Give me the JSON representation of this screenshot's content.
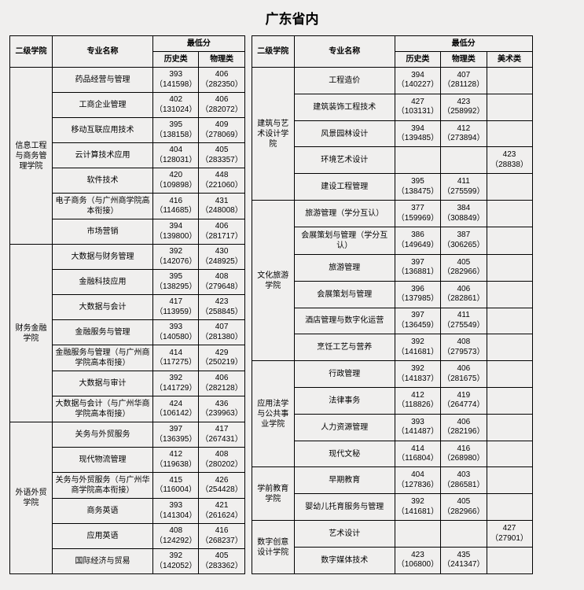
{
  "title": "广东省内",
  "hdr": {
    "col": "二级学院",
    "maj": "专业名称",
    "score": "最低分",
    "h": "历史类",
    "p": "物理类",
    "a": "美术类"
  },
  "left": [
    {
      "col": "信息工程与商务管理学院",
      "span": 7,
      "rows": [
        {
          "m": "药品经营与管理",
          "h1": "393",
          "h2": "（141598）",
          "p1": "406",
          "p2": "（282350）"
        },
        {
          "m": "工商企业管理",
          "h1": "402",
          "h2": "（131024）",
          "p1": "406",
          "p2": "（282072）"
        },
        {
          "m": "移动互联应用技术",
          "h1": "395",
          "h2": "（138158）",
          "p1": "409",
          "p2": "（278069）"
        },
        {
          "m": "云计算技术应用",
          "h1": "404",
          "h2": "（128031）",
          "p1": "405",
          "p2": "（283357）"
        },
        {
          "m": "软件技术",
          "h1": "420",
          "h2": "（109898）",
          "p1": "448",
          "p2": "（221060）"
        },
        {
          "m": "电子商务（与广州商学院高本衔接）",
          "h1": "416",
          "h2": "（114685）",
          "p1": "431",
          "p2": "（248008）"
        },
        {
          "m": "市场营销",
          "h1": "394",
          "h2": "（139800）",
          "p1": "406",
          "p2": "（281717）"
        }
      ]
    },
    {
      "col": "财务金融学院",
      "span": 7,
      "rows": [
        {
          "m": "大数据与财务管理",
          "h1": "392",
          "h2": "（142076）",
          "p1": "430",
          "p2": "（248925）"
        },
        {
          "m": "金融科技应用",
          "h1": "395",
          "h2": "（138295）",
          "p1": "408",
          "p2": "（279648）"
        },
        {
          "m": "大数据与会计",
          "h1": "417",
          "h2": "（113959）",
          "p1": "423",
          "p2": "（258845）"
        },
        {
          "m": "金融服务与管理",
          "h1": "393",
          "h2": "（140580）",
          "p1": "407",
          "p2": "（281380）"
        },
        {
          "m": "金融服务与管理（与广州商学院高本衔接）",
          "h1": "414",
          "h2": "（117275）",
          "p1": "429",
          "p2": "（250219）"
        },
        {
          "m": "大数据与审计",
          "h1": "392",
          "h2": "（141729）",
          "p1": "406",
          "p2": "（282128）"
        },
        {
          "m": "大数据与会计（与广州华商学院高本衔接）",
          "h1": "424",
          "h2": "（106142）",
          "p1": "436",
          "p2": "（239963）"
        }
      ]
    },
    {
      "col": "外语外贸学院",
      "span": 6,
      "rows": [
        {
          "m": "关务与外贸服务",
          "h1": "397",
          "h2": "（136395）",
          "p1": "417",
          "p2": "（267431）"
        },
        {
          "m": "现代物流管理",
          "h1": "412",
          "h2": "（119638）",
          "p1": "408",
          "p2": "（280202）"
        },
        {
          "m": "关务与外贸服务（与广州华商学院高本衔接）",
          "h1": "415",
          "h2": "（116004）",
          "p1": "426",
          "p2": "（254428）"
        },
        {
          "m": "商务英语",
          "h1": "393",
          "h2": "（141304）",
          "p1": "421",
          "p2": "（261624）"
        },
        {
          "m": "应用英语",
          "h1": "408",
          "h2": "（124292）",
          "p1": "416",
          "p2": "（268237）"
        },
        {
          "m": "国际经济与贸易",
          "h1": "392",
          "h2": "（142052）",
          "p1": "405",
          "p2": "（283362）"
        }
      ]
    }
  ],
  "right": [
    {
      "col": "建筑与艺术设计学院",
      "span": 5,
      "rows": [
        {
          "m": "工程造价",
          "h1": "394",
          "h2": "（140227）",
          "p1": "407",
          "p2": "（281128）",
          "a1": "",
          "a2": ""
        },
        {
          "m": "建筑装饰工程技术",
          "h1": "427",
          "h2": "（103131）",
          "p1": "423",
          "p2": "（258992）",
          "a1": "",
          "a2": ""
        },
        {
          "m": "风景园林设计",
          "h1": "394",
          "h2": "（139485）",
          "p1": "412",
          "p2": "（273894）",
          "a1": "",
          "a2": ""
        },
        {
          "m": "环境艺术设计",
          "h1": "",
          "h2": "",
          "p1": "",
          "p2": "",
          "a1": "423",
          "a2": "（28838）"
        },
        {
          "m": "建设工程管理",
          "h1": "395",
          "h2": "（138475）",
          "p1": "411",
          "p2": "（275599）",
          "a1": "",
          "a2": ""
        }
      ]
    },
    {
      "col": "文化旅游学院",
      "span": 6,
      "rows": [
        {
          "m": "旅游管理（学分互认）",
          "h1": "377",
          "h2": "（159969）",
          "p1": "384",
          "p2": "（308849）",
          "a1": "",
          "a2": ""
        },
        {
          "m": "会展策划与管理（学分互认）",
          "h1": "386",
          "h2": "（149649）",
          "p1": "387",
          "p2": "（306265）",
          "a1": "",
          "a2": ""
        },
        {
          "m": "旅游管理",
          "h1": "397",
          "h2": "（136881）",
          "p1": "405",
          "p2": "（282966）",
          "a1": "",
          "a2": ""
        },
        {
          "m": "会展策划与管理",
          "h1": "396",
          "h2": "（137985）",
          "p1": "406",
          "p2": "（282861）",
          "a1": "",
          "a2": ""
        },
        {
          "m": "酒店管理与数字化运营",
          "h1": "397",
          "h2": "（136459）",
          "p1": "411",
          "p2": "（275549）",
          "a1": "",
          "a2": ""
        },
        {
          "m": "烹饪工艺与营养",
          "h1": "392",
          "h2": "（141681）",
          "p1": "408",
          "p2": "（279573）",
          "a1": "",
          "a2": ""
        }
      ]
    },
    {
      "col": "应用法学与公共事业学院",
      "span": 4,
      "rows": [
        {
          "m": "行政管理",
          "h1": "392",
          "h2": "（141837）",
          "p1": "406",
          "p2": "（281675）",
          "a1": "",
          "a2": ""
        },
        {
          "m": "法律事务",
          "h1": "412",
          "h2": "（118826）",
          "p1": "419",
          "p2": "（264774）",
          "a1": "",
          "a2": ""
        },
        {
          "m": "人力资源管理",
          "h1": "393",
          "h2": "（141487）",
          "p1": "406",
          "p2": "（282196）",
          "a1": "",
          "a2": ""
        },
        {
          "m": "现代文秘",
          "h1": "414",
          "h2": "（116804）",
          "p1": "416",
          "p2": "（268980）",
          "a1": "",
          "a2": ""
        }
      ]
    },
    {
      "col": "学前教育学院",
      "span": 2,
      "rows": [
        {
          "m": "早期教育",
          "h1": "404",
          "h2": "（127836）",
          "p1": "403",
          "p2": "（286581）",
          "a1": "",
          "a2": ""
        },
        {
          "m": "婴幼儿托育服务与管理",
          "h1": "392",
          "h2": "（141681）",
          "p1": "405",
          "p2": "（282966）",
          "a1": "",
          "a2": ""
        }
      ]
    },
    {
      "col": "数字创意设计学院",
      "span": 2,
      "rows": [
        {
          "m": "艺术设计",
          "h1": "",
          "h2": "",
          "p1": "",
          "p2": "",
          "a1": "427",
          "a2": "（27901）"
        },
        {
          "m": "数字媒体技术",
          "h1": "423",
          "h2": "（106800）",
          "p1": "435",
          "p2": "（241347）",
          "a1": "",
          "a2": ""
        }
      ]
    }
  ]
}
